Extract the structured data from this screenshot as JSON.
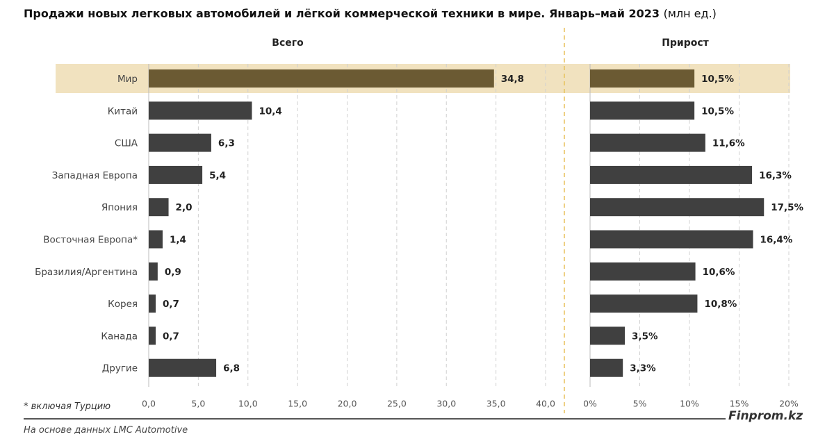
{
  "title": "Продажи новых легковых автомобилей и лёгкой коммерческой техники в мире. Январь–май 2023",
  "title_unit": "(млн ед.)",
  "footnote": "* включая Турцию",
  "source": "На основе данных LMC Automotive",
  "brand": "Finprom.kz",
  "colors": {
    "bar": "#404040",
    "highlight_bar": "#6b5a33",
    "highlight_band": "#f1e2bf",
    "divider": "#e8c15a",
    "grid": "#d0d0d0"
  },
  "chart_data": [
    {
      "type": "bar",
      "orientation": "horizontal",
      "title": "Всего",
      "categories": [
        "Мир",
        "Китай",
        "США",
        "Западная Европа",
        "Япония",
        "Восточная Европа*",
        "Бразилия/Аргентина",
        "Корея",
        "Канада",
        "Другие"
      ],
      "values": [
        34.8,
        10.4,
        6.3,
        5.4,
        2.0,
        1.4,
        0.9,
        0.7,
        0.7,
        6.8
      ],
      "value_labels": [
        "34,8",
        "10,4",
        "6,3",
        "5,4",
        "2,0",
        "1,4",
        "0,9",
        "0,7",
        "0,7",
        "6,8"
      ],
      "xlim": [
        0,
        40
      ],
      "ticks": [
        0,
        5,
        10,
        15,
        20,
        25,
        30,
        35,
        40
      ],
      "tick_labels": [
        "0,0",
        "5,0",
        "10,0",
        "15,0",
        "20,0",
        "25,0",
        "30,0",
        "35,0",
        "40,0"
      ],
      "grid": true,
      "highlight": "Мир"
    },
    {
      "type": "bar",
      "orientation": "horizontal",
      "title": "Прирост",
      "categories": [
        "Мир",
        "Китай",
        "США",
        "Западная Европа",
        "Япония",
        "Восточная Европа*",
        "Бразилия/Аргентина",
        "Корея",
        "Канада",
        "Другие"
      ],
      "values": [
        10.5,
        10.5,
        11.6,
        16.3,
        17.5,
        16.4,
        10.6,
        10.8,
        3.5,
        3.3
      ],
      "value_labels": [
        "10,5%",
        "10,5%",
        "11,6%",
        "16,3%",
        "17,5%",
        "16,4%",
        "10,6%",
        "10,8%",
        "3,5%",
        "3,3%"
      ],
      "xlim": [
        0,
        20
      ],
      "ticks": [
        0,
        5,
        10,
        15,
        20
      ],
      "tick_labels": [
        "0%",
        "5%",
        "10%",
        "15%",
        "20%"
      ],
      "grid": true,
      "highlight": "Мир"
    }
  ]
}
